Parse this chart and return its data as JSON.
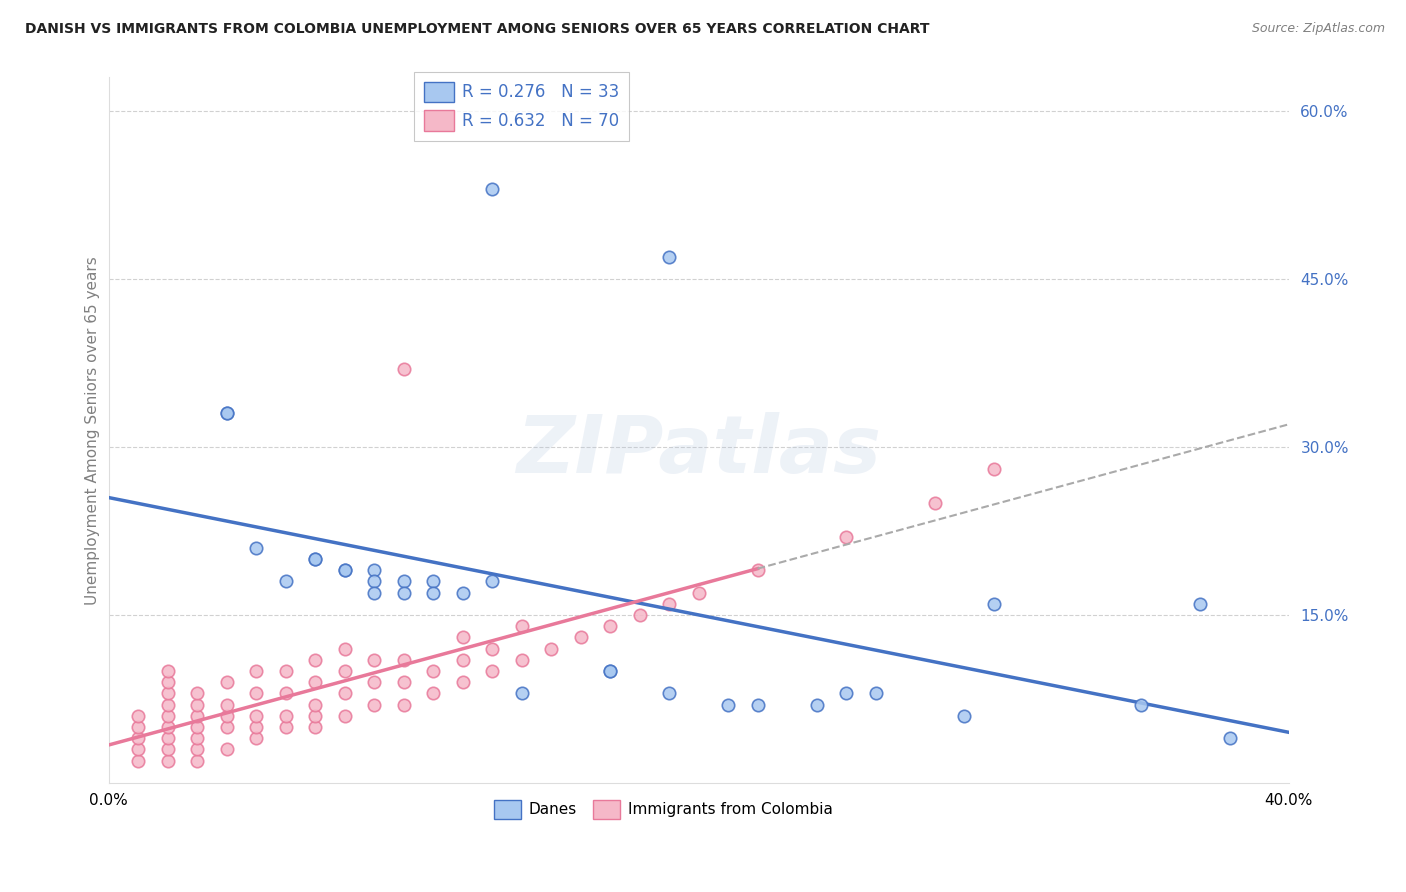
{
  "title": "DANISH VS IMMIGRANTS FROM COLOMBIA UNEMPLOYMENT AMONG SENIORS OVER 65 YEARS CORRELATION CHART",
  "source": "Source: ZipAtlas.com",
  "ylabel": "Unemployment Among Seniors over 65 years",
  "legend_danes": "Danes",
  "legend_immigrants": "Immigrants from Colombia",
  "danes_R": "0.276",
  "danes_N": "33",
  "immigrants_R": "0.632",
  "immigrants_N": "70",
  "danes_color": "#A8C8F0",
  "immigrants_color": "#F5B8C8",
  "danes_line_color": "#4472C4",
  "immigrants_line_color": "#E8799A",
  "watermark_text": "ZIPatlas",
  "danes_scatter_x": [
    0.13,
    0.19,
    0.04,
    0.04,
    0.05,
    0.06,
    0.07,
    0.07,
    0.08,
    0.08,
    0.09,
    0.09,
    0.09,
    0.1,
    0.1,
    0.11,
    0.11,
    0.12,
    0.13,
    0.14,
    0.17,
    0.17,
    0.19,
    0.21,
    0.22,
    0.24,
    0.25,
    0.26,
    0.29,
    0.3,
    0.35,
    0.37,
    0.38
  ],
  "danes_scatter_y": [
    0.53,
    0.47,
    0.33,
    0.33,
    0.21,
    0.18,
    0.2,
    0.2,
    0.19,
    0.19,
    0.19,
    0.18,
    0.17,
    0.18,
    0.17,
    0.18,
    0.17,
    0.17,
    0.18,
    0.08,
    0.1,
    0.1,
    0.08,
    0.07,
    0.07,
    0.07,
    0.08,
    0.08,
    0.06,
    0.16,
    0.07,
    0.16,
    0.04
  ],
  "immigrants_scatter_x": [
    0.01,
    0.01,
    0.01,
    0.01,
    0.01,
    0.02,
    0.02,
    0.02,
    0.02,
    0.02,
    0.02,
    0.02,
    0.02,
    0.02,
    0.03,
    0.03,
    0.03,
    0.03,
    0.03,
    0.03,
    0.03,
    0.04,
    0.04,
    0.04,
    0.04,
    0.04,
    0.05,
    0.05,
    0.05,
    0.05,
    0.05,
    0.06,
    0.06,
    0.06,
    0.06,
    0.07,
    0.07,
    0.07,
    0.07,
    0.07,
    0.08,
    0.08,
    0.08,
    0.08,
    0.09,
    0.09,
    0.09,
    0.1,
    0.1,
    0.1,
    0.1,
    0.11,
    0.11,
    0.12,
    0.12,
    0.12,
    0.13,
    0.13,
    0.14,
    0.14,
    0.15,
    0.16,
    0.17,
    0.18,
    0.19,
    0.2,
    0.22,
    0.25,
    0.28,
    0.3
  ],
  "immigrants_scatter_y": [
    0.02,
    0.03,
    0.04,
    0.05,
    0.06,
    0.02,
    0.03,
    0.04,
    0.05,
    0.06,
    0.07,
    0.08,
    0.09,
    0.1,
    0.02,
    0.03,
    0.04,
    0.05,
    0.06,
    0.07,
    0.08,
    0.03,
    0.05,
    0.06,
    0.07,
    0.09,
    0.04,
    0.05,
    0.06,
    0.08,
    0.1,
    0.05,
    0.06,
    0.08,
    0.1,
    0.05,
    0.06,
    0.07,
    0.09,
    0.11,
    0.06,
    0.08,
    0.1,
    0.12,
    0.07,
    0.09,
    0.11,
    0.07,
    0.09,
    0.11,
    0.37,
    0.08,
    0.1,
    0.09,
    0.11,
    0.13,
    0.1,
    0.12,
    0.11,
    0.14,
    0.12,
    0.13,
    0.14,
    0.15,
    0.16,
    0.17,
    0.19,
    0.22,
    0.25,
    0.28
  ],
  "xlim": [
    0.0,
    0.4
  ],
  "ylim": [
    0.0,
    0.63
  ],
  "background_color": "#ffffff",
  "grid_color": "#CCCCCC",
  "yticks": [
    0.15,
    0.3,
    0.45,
    0.6
  ],
  "ytick_labels": [
    "15.0%",
    "30.0%",
    "45.0%",
    "60.0%"
  ],
  "xticks": [
    0.0,
    0.4
  ],
  "xtick_labels": [
    "0.0%",
    "40.0%"
  ]
}
